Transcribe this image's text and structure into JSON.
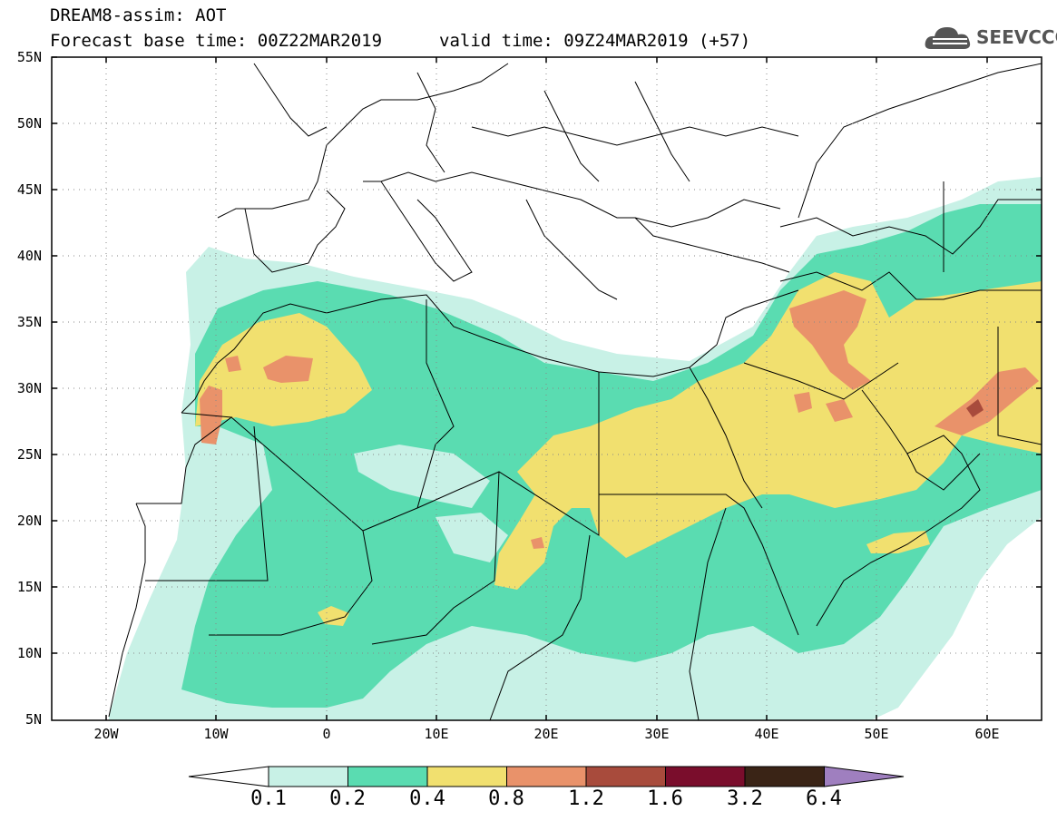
{
  "title": {
    "line1": "DREAM8-assim: AOT",
    "line2": "Forecast base time: 00Z22MAR2019",
    "valid": "valid time: 09Z24MAR2019 (+57)"
  },
  "logo": {
    "text": "SEEVCCC",
    "icon": "cloud-icon"
  },
  "map": {
    "lat_ticks": [
      "55N",
      "50N",
      "45N",
      "40N",
      "35N",
      "30N",
      "25N",
      "20N",
      "15N",
      "10N",
      "5N"
    ],
    "lon_ticks": [
      "20W",
      "10W",
      "0",
      "10E",
      "20E",
      "30E",
      "40E",
      "50E",
      "60E"
    ],
    "lat_range": [
      5,
      55
    ],
    "lon_range": [
      -25,
      65
    ]
  },
  "colorbar": {
    "labels": [
      "0.1",
      "0.2",
      "0.4",
      "0.8",
      "1.2",
      "1.6",
      "3.2",
      "6.4"
    ],
    "colors": [
      "#c8f1e6",
      "#5adcb1",
      "#f1e06f",
      "#e9926a",
      "#a84b3c",
      "#7a0d2c",
      "#3a2416",
      "#9f7fbf"
    ]
  }
}
